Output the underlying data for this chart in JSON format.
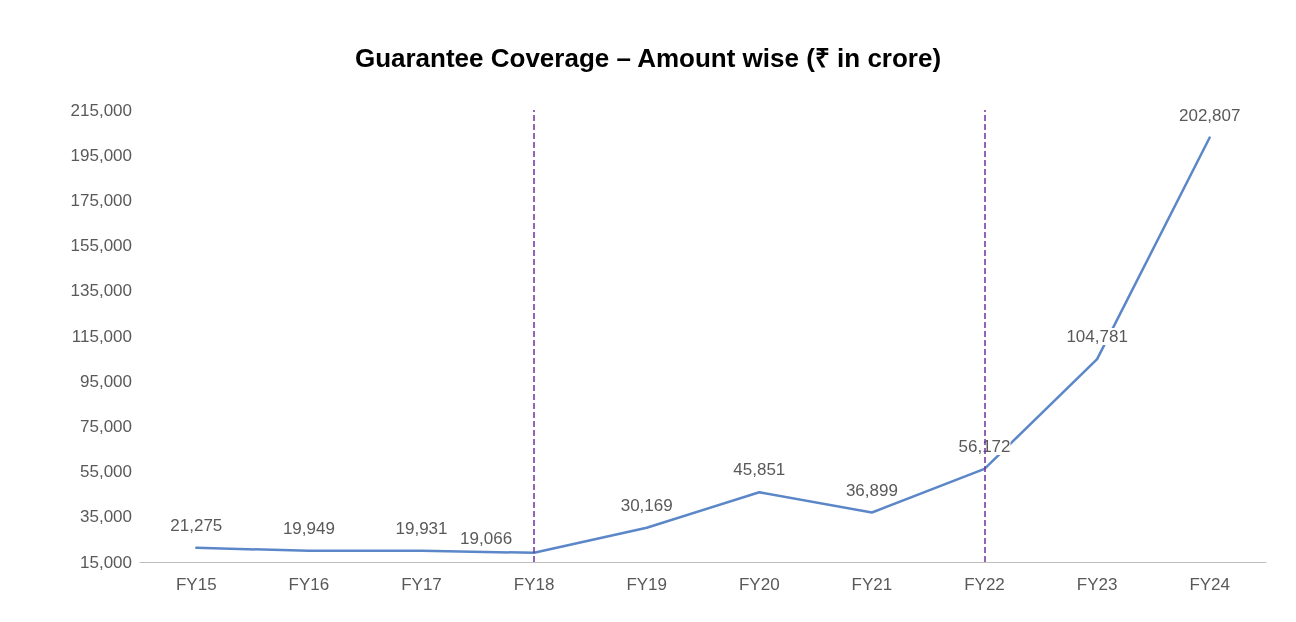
{
  "chart_data": {
    "type": "line",
    "title": "Guarantee Coverage – Amount wise (₹ in crore)",
    "categories": [
      "FY15",
      "FY16",
      "FY17",
      "FY18",
      "FY19",
      "FY20",
      "FY21",
      "FY22",
      "FY23",
      "FY24"
    ],
    "series": [
      {
        "color": "#5b87c9",
        "values": [
          21275,
          19949,
          19931,
          19066,
          30169,
          45851,
          36899,
          56172,
          104781,
          202807
        ],
        "value_labels": [
          "21,275",
          "19,949",
          "19,931",
          "19,066",
          "30,169",
          "45,851",
          "36,899",
          "56,172",
          "104,781",
          "202,807"
        ]
      }
    ],
    "ylim": [
      15000,
      215000
    ],
    "yticks": [
      {
        "value": 15000,
        "label": "15,000"
      },
      {
        "value": 35000,
        "label": "35,000"
      },
      {
        "value": 55000,
        "label": "55,000"
      },
      {
        "value": 75000,
        "label": "75,000"
      },
      {
        "value": 95000,
        "label": "95,000"
      },
      {
        "value": 115000,
        "label": "115,000"
      },
      {
        "value": 135000,
        "label": "135,000"
      },
      {
        "value": 155000,
        "label": "155,000"
      },
      {
        "value": 175000,
        "label": "175,000"
      },
      {
        "value": 195000,
        "label": "195,000"
      },
      {
        "value": 215000,
        "label": "215,000"
      }
    ],
    "ref_lines": [
      {
        "axis": "x",
        "value": "FY18",
        "color": "#7030a0",
        "line_style": "dashed"
      },
      {
        "axis": "x",
        "value": "FY22",
        "color": "#7030a0",
        "line_style": "dashed"
      }
    ],
    "grid": false,
    "marker": "none",
    "line_style": "solid"
  }
}
